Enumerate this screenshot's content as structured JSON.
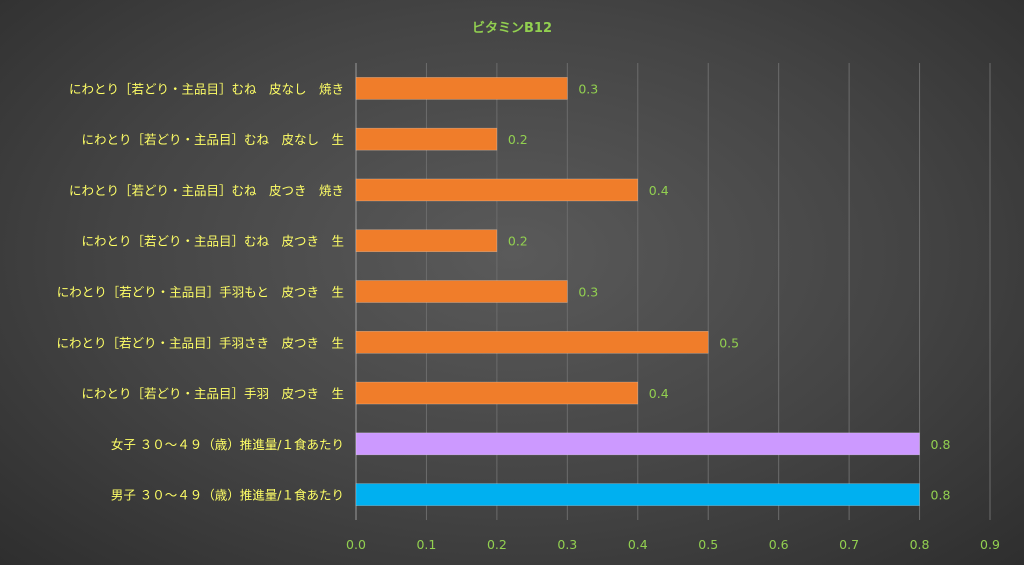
{
  "chart_data": {
    "type": "bar",
    "orientation": "horizontal",
    "title": "ビタミンB12",
    "xlim": [
      0,
      0.9
    ],
    "x_ticks": [
      "0.0",
      "0.1",
      "0.2",
      "0.3",
      "0.4",
      "0.5",
      "0.6",
      "0.7",
      "0.8",
      "0.9"
    ],
    "grid": true,
    "legend": "none",
    "categories": [
      "にわとり［若どり・主品目］むね　皮なし　焼き",
      "にわとり［若どり・主品目］むね　皮なし　生",
      "にわとり［若どり・主品目］むね　皮つき　焼き",
      "にわとり［若どり・主品目］むね　皮つき　生",
      "にわとり［若どり・主品目］手羽もと　皮つき　生",
      "にわとり［若どり・主品目］手羽さき　皮つき　生",
      "にわとり［若どり・主品目］手羽　皮つき　生",
      "女子 ３０～４９（歳）推進量/１食あたり",
      "男子 ３０～４９（歳）推進量/１食あたり"
    ],
    "values": [
      0.3,
      0.2,
      0.4,
      0.2,
      0.3,
      0.5,
      0.4,
      0.8,
      0.8
    ],
    "value_labels": [
      "0.3",
      "0.2",
      "0.4",
      "0.2",
      "0.3",
      "0.5",
      "0.4",
      "0.8",
      "0.8"
    ],
    "bar_colors": [
      "#f07d2a",
      "#f07d2a",
      "#f07d2a",
      "#f07d2a",
      "#f07d2a",
      "#f07d2a",
      "#f07d2a",
      "#cc99ff",
      "#00b0f0"
    ]
  }
}
